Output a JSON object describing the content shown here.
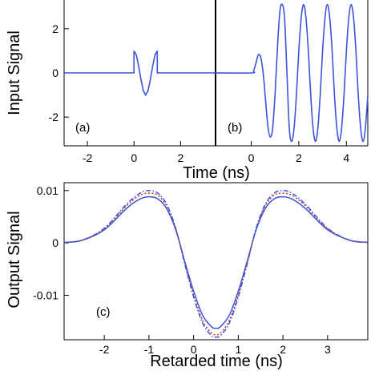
{
  "chart_data": [
    {
      "type": "line",
      "panel": "(a)",
      "ylabel": "Input Signal",
      "xlim": [
        -3,
        3.5
      ],
      "ylim": [
        -3.3,
        3.3
      ],
      "xticks": [
        -2,
        0,
        2
      ],
      "yticks": [
        2,
        0,
        -2
      ],
      "ytick_labels": [
        "2",
        "0",
        "-2"
      ],
      "color": "#3a55d9",
      "series": [
        {
          "x": [
            -3,
            0,
            0,
            0.1,
            0.2,
            0.3,
            0.4,
            0.5,
            0.6,
            0.7,
            0.8,
            0.9,
            1,
            1,
            3.5
          ],
          "values": [
            0,
            0,
            1,
            0.81,
            0.31,
            -0.31,
            -0.81,
            -1,
            -0.81,
            -0.31,
            0.31,
            0.81,
            1,
            0,
            0
          ]
        }
      ]
    },
    {
      "type": "line",
      "panel": "(b)",
      "xlim": [
        -1.5,
        4.9
      ],
      "ylim": [
        -3.3,
        3.3
      ],
      "xticks": [
        0,
        2,
        4
      ],
      "color": "#3a55d9",
      "series": [
        {
          "x": [
            -1.5,
            0,
            0.1,
            0.2,
            0.3,
            0.4,
            0.5,
            0.6,
            0.7,
            0.8,
            0.9,
            1,
            1.1,
            1.2,
            1.3,
            1.4,
            1.5,
            1.6,
            1.7,
            1.8,
            1.9,
            2,
            2.1,
            2.2,
            2.3,
            2.4,
            2.5,
            2.6,
            2.7,
            2.8,
            2.9,
            3,
            3.1,
            3.2,
            3.3,
            3.4,
            3.5,
            3.6,
            3.7,
            3.8,
            3.9,
            4,
            4.1,
            4.2,
            4.3,
            4.4,
            4.5,
            4.6,
            4.7,
            4.8,
            4.9
          ],
          "values": [
            0,
            0,
            0.1,
            0.45,
            0.82,
            0.7,
            0,
            -1.2,
            -2.4,
            -2.9,
            -2.5,
            -1,
            1.1,
            2.75,
            3.1,
            2.5,
            0,
            -2.5,
            -3.1,
            -2.5,
            -1,
            1,
            2.5,
            3.1,
            2.5,
            1,
            -1,
            -2.5,
            -3.1,
            -2.5,
            -1,
            1,
            2.5,
            3.1,
            2.5,
            1,
            -1,
            -2.5,
            -3.1,
            -2.5,
            -1,
            1,
            2.5,
            3.1,
            2.5,
            1,
            -1,
            -2.5,
            -3.1,
            -2.5,
            -1
          ]
        }
      ]
    },
    {
      "type": "line",
      "panel": "(c)",
      "xlabel": "Time (ns)"
    },
    {
      "type": "line",
      "panel": "(c)",
      "ylabel": "Output Signal",
      "xlabel": "Retarded time (ns)",
      "xlim": [
        -2.9,
        3.9
      ],
      "ylim": [
        -0.0185,
        0.0115
      ],
      "xticks": [
        -2,
        -1,
        0,
        1,
        2,
        3
      ],
      "yticks": [
        0.01,
        0,
        -0.01
      ],
      "ytick_labels": [
        "0.01",
        "0",
        "-0.01"
      ],
      "series": [
        {
          "color": "#3a55d9",
          "style": "solid",
          "x": [
            -2.9,
            -2.5,
            -2,
            -1.5,
            -1.2,
            -1,
            -0.8,
            -0.6,
            -0.4,
            -0.2,
            0,
            0.2,
            0.4,
            0.5,
            0.6,
            0.8,
            1,
            1.2,
            1.4,
            1.6,
            1.8,
            2,
            2.2,
            2.5,
            3,
            3.5,
            3.9
          ],
          "values": [
            0.0001,
            0.0005,
            0.0025,
            0.0066,
            0.0084,
            0.0088,
            0.0084,
            0.0065,
            0.0025,
            -0.0035,
            -0.0092,
            -0.0138,
            -0.016,
            -0.0163,
            -0.016,
            -0.0138,
            -0.0092,
            -0.0035,
            0.0025,
            0.0065,
            0.0084,
            0.0088,
            0.0084,
            0.0066,
            0.0025,
            0.0005,
            0.0001
          ]
        },
        {
          "color": "#c0392b",
          "style": "dotted",
          "x": [
            -2.9,
            -2.5,
            -2,
            -1.5,
            -1.2,
            -1,
            -0.8,
            -0.6,
            -0.4,
            -0.2,
            0,
            0.2,
            0.4,
            0.5,
            0.6,
            0.8,
            1,
            1.2,
            1.4,
            1.6,
            1.8,
            2,
            2.2,
            2.5,
            3,
            3.5,
            3.9
          ],
          "values": [
            0.0001,
            0.0005,
            0.0027,
            0.0071,
            0.0091,
            0.0095,
            0.0091,
            0.007,
            0.0027,
            -0.0038,
            -0.0099,
            -0.0148,
            -0.0172,
            -0.0175,
            -0.0172,
            -0.0148,
            -0.0099,
            -0.0038,
            0.0027,
            0.007,
            0.0091,
            0.0095,
            0.0091,
            0.0071,
            0.0027,
            0.0005,
            0.0001
          ]
        },
        {
          "color": "#3a55d9",
          "style": "dashdot",
          "x": [
            -2.9,
            -2.5,
            -2,
            -1.5,
            -1.2,
            -1,
            -0.8,
            -0.6,
            -0.4,
            -0.2,
            0,
            0.2,
            0.4,
            0.5,
            0.6,
            0.8,
            1,
            1.2,
            1.4,
            1.6,
            1.8,
            2,
            2.2,
            2.5,
            3,
            3.5,
            3.9
          ],
          "values": [
            0.0001,
            0.0005,
            0.0028,
            0.0074,
            0.0095,
            0.01,
            0.0095,
            0.0073,
            0.0028,
            -0.004,
            -0.0103,
            -0.0153,
            -0.0177,
            -0.018,
            -0.0177,
            -0.0153,
            -0.0103,
            -0.004,
            0.0028,
            0.0073,
            0.0095,
            0.01,
            0.0095,
            0.0074,
            0.0028,
            0.0005,
            0.0001
          ]
        }
      ]
    }
  ]
}
